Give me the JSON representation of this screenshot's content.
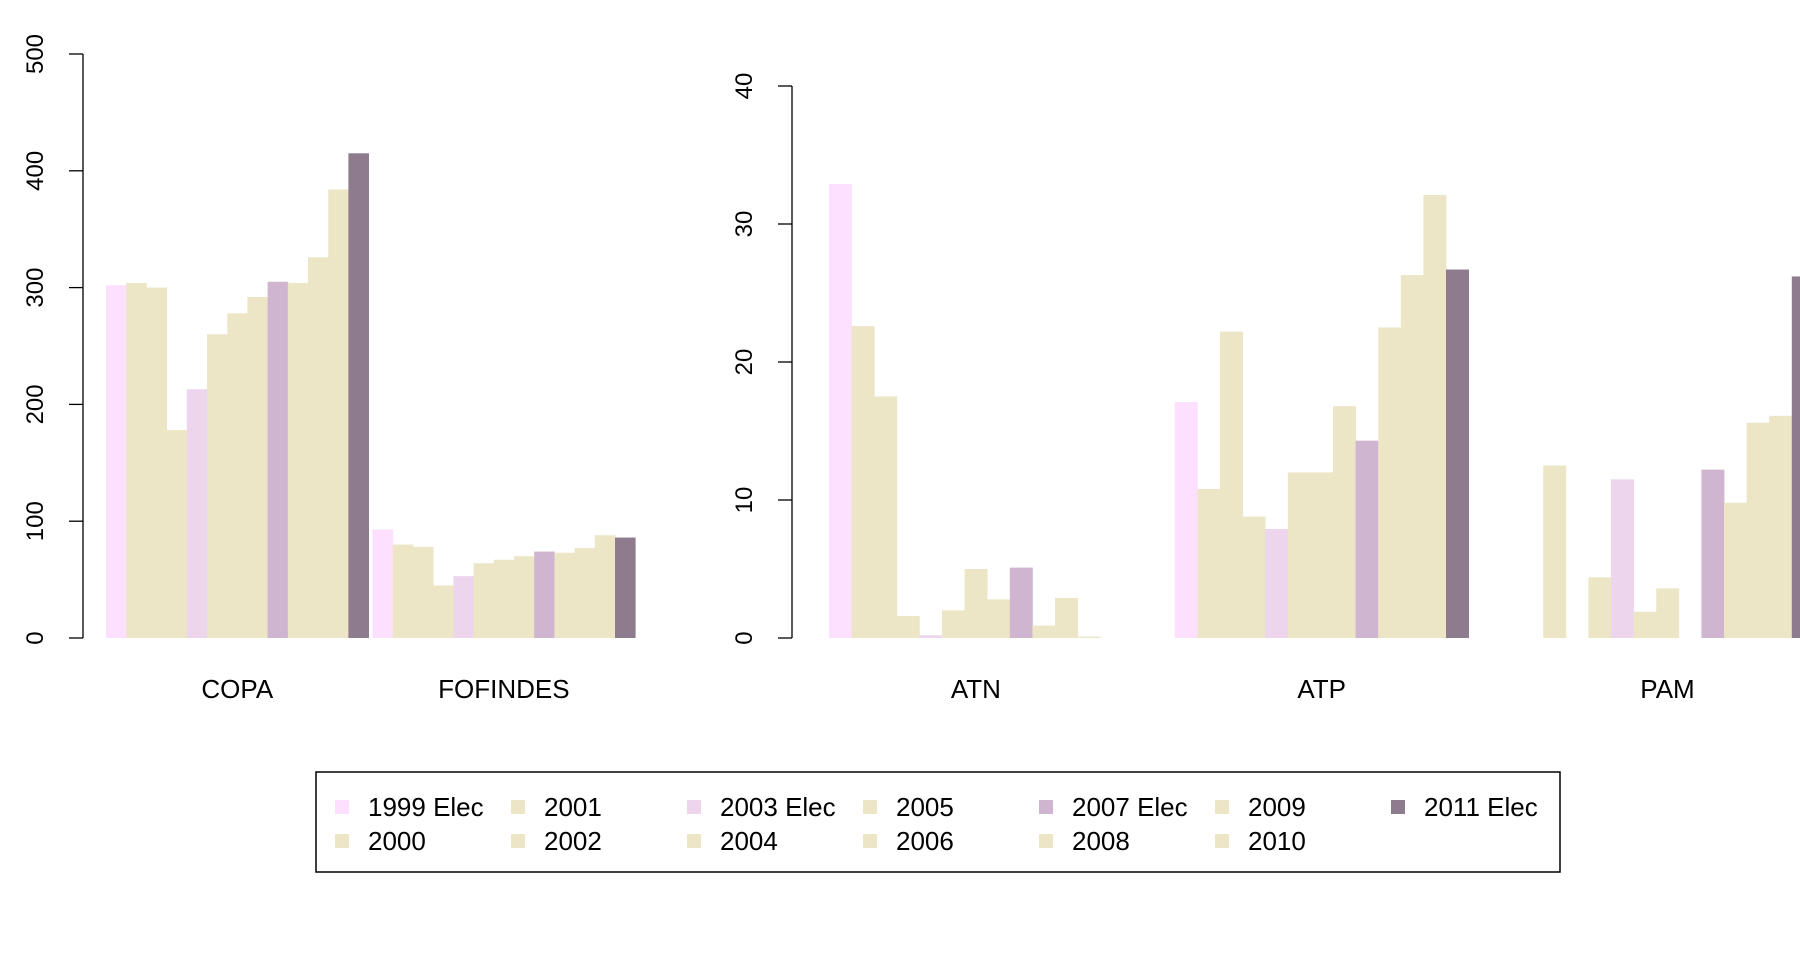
{
  "chart_data": [
    {
      "type": "bar",
      "categories": [
        "COPA",
        "FOFINDES"
      ],
      "ylim": [
        0,
        500
      ],
      "yticks": [
        0,
        100,
        200,
        300,
        400,
        500
      ],
      "series": [
        {
          "name": "1999 Elec",
          "color": "#FDE0FF",
          "values": [
            302,
            93
          ]
        },
        {
          "name": "2000",
          "color": "#ECE6C7",
          "values": [
            304,
            80
          ]
        },
        {
          "name": "2001",
          "color": "#ECE6C7",
          "values": [
            300,
            78
          ]
        },
        {
          "name": "2002",
          "color": "#ECE6C7",
          "values": [
            178,
            45
          ]
        },
        {
          "name": "2003 Elec",
          "color": "#EDD5EE",
          "values": [
            213,
            53
          ]
        },
        {
          "name": "2004",
          "color": "#ECE6C7",
          "values": [
            260,
            64
          ]
        },
        {
          "name": "2005",
          "color": "#ECE6C7",
          "values": [
            278,
            67
          ]
        },
        {
          "name": "2006",
          "color": "#ECE6C7",
          "values": [
            292,
            70
          ]
        },
        {
          "name": "2007 Elec",
          "color": "#CFB5D0",
          "values": [
            305,
            74
          ]
        },
        {
          "name": "2008",
          "color": "#ECE6C7",
          "values": [
            304,
            73
          ]
        },
        {
          "name": "2009",
          "color": "#ECE6C7",
          "values": [
            326,
            77
          ]
        },
        {
          "name": "2010",
          "color": "#ECE6C7",
          "values": [
            384,
            88
          ]
        },
        {
          "name": "2011 Elec",
          "color": "#8E7B8E",
          "values": [
            415,
            86
          ]
        }
      ]
    },
    {
      "type": "bar",
      "categories": [
        "ATN",
        "ATP",
        "PAM"
      ],
      "ylim": [
        0,
        40
      ],
      "yticks": [
        0,
        10,
        20,
        30,
        40
      ],
      "series": [
        {
          "name": "1999 Elec",
          "color": "#FDE0FF",
          "values": [
            32.9,
            17.1,
            0
          ]
        },
        {
          "name": "2000",
          "color": "#ECE6C7",
          "values": [
            22.6,
            10.8,
            12.5
          ]
        },
        {
          "name": "2001",
          "color": "#ECE6C7",
          "values": [
            17.5,
            22.2,
            0
          ]
        },
        {
          "name": "2002",
          "color": "#ECE6C7",
          "values": [
            1.6,
            8.8,
            4.4
          ]
        },
        {
          "name": "2003 Elec",
          "color": "#EDD5EE",
          "values": [
            0.2,
            7.9,
            11.5
          ]
        },
        {
          "name": "2004",
          "color": "#ECE6C7",
          "values": [
            2.0,
            12.0,
            1.9
          ]
        },
        {
          "name": "2005",
          "color": "#ECE6C7",
          "values": [
            5.0,
            12.0,
            3.6
          ]
        },
        {
          "name": "2006",
          "color": "#ECE6C7",
          "values": [
            2.8,
            16.8,
            0
          ]
        },
        {
          "name": "2007 Elec",
          "color": "#CFB5D0",
          "values": [
            5.1,
            14.3,
            12.2
          ]
        },
        {
          "name": "2008",
          "color": "#ECE6C7",
          "values": [
            0.9,
            22.5,
            9.8
          ]
        },
        {
          "name": "2009",
          "color": "#ECE6C7",
          "values": [
            2.9,
            26.3,
            15.6
          ]
        },
        {
          "name": "2010",
          "color": "#ECE6C7",
          "values": [
            0.1,
            32.1,
            16.1
          ]
        },
        {
          "name": "2011 Elec",
          "color": "#8E7B8E",
          "values": [
            0,
            26.7,
            26.2
          ]
        }
      ]
    }
  ],
  "legend": {
    "items": [
      {
        "label": "1999 Elec",
        "color": "#FDE0FF"
      },
      {
        "label": "2000",
        "color": "#ECE6C7"
      },
      {
        "label": "2001",
        "color": "#ECE6C7"
      },
      {
        "label": "2002",
        "color": "#ECE6C7"
      },
      {
        "label": "2003 Elec",
        "color": "#EDD5EE"
      },
      {
        "label": "2004",
        "color": "#ECE6C7"
      },
      {
        "label": "2005",
        "color": "#ECE6C7"
      },
      {
        "label": "2006",
        "color": "#ECE6C7"
      },
      {
        "label": "2007 Elec",
        "color": "#CFB5D0"
      },
      {
        "label": "2008",
        "color": "#ECE6C7"
      },
      {
        "label": "2009",
        "color": "#ECE6C7"
      },
      {
        "label": "2010",
        "color": "#ECE6C7"
      },
      {
        "label": "2011 Elec",
        "color": "#8E7B8E"
      }
    ]
  }
}
